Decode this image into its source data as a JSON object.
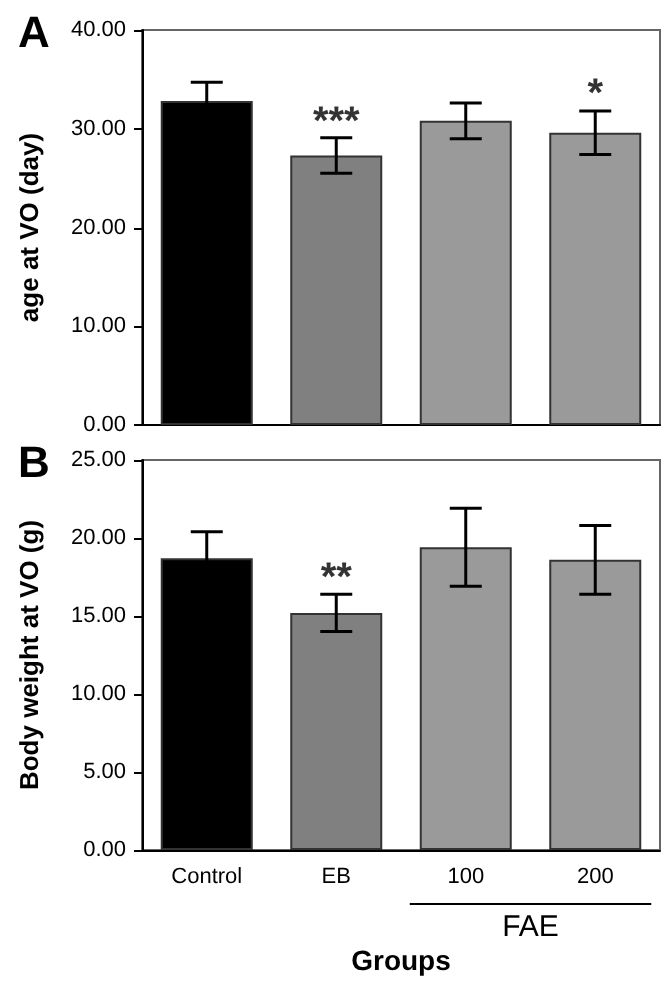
{
  "chart_data": [
    {
      "type": "bar",
      "title": "A",
      "ylabel": "age at VO (day)",
      "categories": [
        "Control",
        "EB",
        "100",
        "200"
      ],
      "tick_labels": "y",
      "values": [
        32.8,
        27.3,
        30.8,
        29.6
      ],
      "errors": [
        1.9,
        1.8,
        1.8,
        2.2
      ],
      "colors": [
        "#000000",
        "#808080",
        "#9a9a9a",
        "#9a9a9a"
      ],
      "ylim": [
        0,
        40
      ],
      "yticks": [
        {
          "value": 0,
          "label": "0.00"
        },
        {
          "value": 10,
          "label": "10.00"
        },
        {
          "value": 20,
          "label": "20.00"
        },
        {
          "value": 30,
          "label": "30.00"
        },
        {
          "value": 40,
          "label": "40.00"
        }
      ],
      "annotations": [
        {
          "text": "***",
          "x": "EB",
          "y": 29.1
        },
        {
          "text": "*",
          "x": "200",
          "y": 31.9
        }
      ]
    },
    {
      "type": "bar",
      "title": "B",
      "ylabel": "Body weight at VO (g)",
      "xlabel": "Groups",
      "categories": [
        "Control",
        "EB",
        "100",
        "200"
      ],
      "values": [
        18.7,
        15.2,
        19.4,
        18.6
      ],
      "errors": [
        1.7,
        1.2,
        2.5,
        2.2
      ],
      "colors": [
        "#000000",
        "#808080",
        "#9a9a9a",
        "#9a9a9a"
      ],
      "ylim": [
        0,
        25
      ],
      "yticks": [
        {
          "value": 0,
          "label": "0.00"
        },
        {
          "value": 5,
          "label": "5.00"
        },
        {
          "value": 10,
          "label": "10.00"
        },
        {
          "value": 15,
          "label": "15.00"
        },
        {
          "value": 20,
          "label": "20.00"
        },
        {
          "value": 25,
          "label": "25.00"
        }
      ],
      "annotations": [
        {
          "text": "**",
          "x": "EB",
          "y": 16.4
        },
        "FAE"
      ]
    }
  ]
}
